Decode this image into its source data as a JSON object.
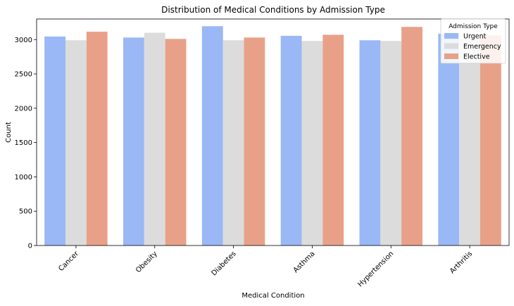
{
  "chart_data": {
    "type": "bar",
    "title": "Distribution of Medical Conditions by Admission Type",
    "xlabel": "Medical Condition",
    "ylabel": "Count",
    "ylim": [
      0,
      3300
    ],
    "yticks": [
      0,
      500,
      1000,
      1500,
      2000,
      2500,
      3000
    ],
    "categories": [
      "Cancer",
      "Obesity",
      "Diabetes",
      "Asthma",
      "Hypertension",
      "Arthritis"
    ],
    "series": [
      {
        "name": "Urgent",
        "color": "#9ab8f5",
        "values": [
          3045,
          3030,
          3195,
          3055,
          2990,
          3085
        ]
      },
      {
        "name": "Emergency",
        "color": "#dcdcdc",
        "values": [
          2990,
          3100,
          2990,
          2980,
          2980,
          3015
        ]
      },
      {
        "name": "Elective",
        "color": "#e8a188",
        "values": [
          3115,
          3010,
          3030,
          3070,
          3185,
          3060
        ]
      }
    ],
    "legend": {
      "title": "Admission Type",
      "placement": "top-right"
    },
    "grid": false
  }
}
